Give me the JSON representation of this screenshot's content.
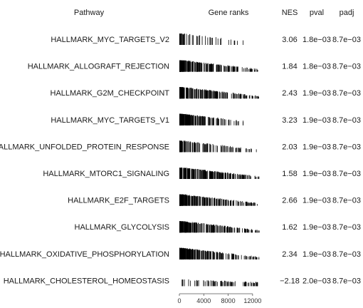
{
  "headers": {
    "pathway": "Pathway",
    "ranks": "Gene ranks",
    "nes": "NES",
    "pval": "pval",
    "padj": "padj"
  },
  "colors": {
    "text": "#1a1a1a",
    "bars": "#000000",
    "axis": "#555555"
  },
  "chart_data": {
    "type": "table",
    "xlabel": "",
    "x_range": [
      0,
      14000
    ],
    "x_ticks": [
      0,
      4000,
      8000,
      12000
    ],
    "x_tick_labels": [
      "0",
      "4000",
      "8000",
      "12000"
    ],
    "rows": [
      {
        "pathway": "HALLMARK_MYC_TARGETS_V2",
        "nes": "3.06",
        "pval": "1.8e−03",
        "padj": "8.7e−03",
        "density": "very-top",
        "n_hits": 58
      },
      {
        "pathway": "HALLMARK_ALLOGRAFT_REJECTION",
        "nes": "1.84",
        "pval": "1.8e−03",
        "padj": "8.7e−03",
        "density": "top",
        "n_hits": 200
      },
      {
        "pathway": "HALLMARK_G2M_CHECKPOINT",
        "nes": "2.43",
        "pval": "1.9e−03",
        "padj": "8.7e−03",
        "density": "top",
        "n_hits": 200
      },
      {
        "pathway": "HALLMARK_MYC_TARGETS_V1",
        "nes": "3.23",
        "pval": "1.9e−03",
        "padj": "8.7e−03",
        "density": "very-top",
        "n_hits": 200
      },
      {
        "pathway": "HALLMARK_UNFOLDED_PROTEIN_RESPONSE",
        "nes": "2.03",
        "pval": "1.9e−03",
        "padj": "8.7e−03",
        "density": "top",
        "n_hits": 113
      },
      {
        "pathway": "HALLMARK_MTORC1_SIGNALING",
        "nes": "1.58",
        "pval": "1.9e−03",
        "padj": "8.7e−03",
        "density": "mild-top",
        "n_hits": 200
      },
      {
        "pathway": "HALLMARK_E2F_TARGETS",
        "nes": "2.66",
        "pval": "1.9e−03",
        "padj": "8.7e−03",
        "density": "top",
        "n_hits": 200
      },
      {
        "pathway": "HALLMARK_GLYCOLYSIS",
        "nes": "1.62",
        "pval": "1.9e−03",
        "padj": "8.7e−03",
        "density": "mild-top",
        "n_hits": 200
      },
      {
        "pathway": "HALLMARK_OXIDATIVE_PHOSPHORYLATION",
        "nes": "2.34",
        "pval": "1.9e−03",
        "padj": "8.7e−03",
        "density": "top",
        "n_hits": 200
      },
      {
        "pathway": "HALLMARK_CHOLESTEROL_HOMEOSTASIS",
        "nes": "−2.18",
        "pval": "2.0e−03",
        "padj": "8.7e−03",
        "density": "bottom",
        "n_hits": 74
      }
    ]
  }
}
